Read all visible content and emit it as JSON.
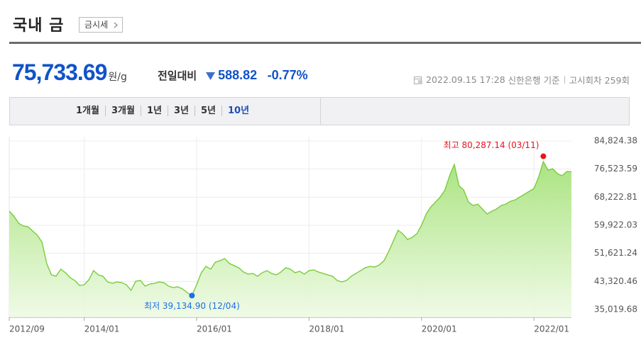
{
  "header": {
    "title": "국내 금",
    "button": "금시세"
  },
  "quote": {
    "price": "75,733.69",
    "unit": "원/g",
    "compare_label": "전일대비",
    "change": "588.82",
    "change_pct": "-0.77%",
    "timestamp": "2022.09.15 17:28",
    "source": "신한은행 기준",
    "round": "고시회차 259회"
  },
  "tabs": [
    "1개월",
    "3개월",
    "1년",
    "3년",
    "5년",
    "10년"
  ],
  "active_tab": 5,
  "chart_data": {
    "type": "area",
    "x": [
      "2012/09",
      "2012/10",
      "2012/11",
      "2012/12",
      "2013/01",
      "2013/02",
      "2013/03",
      "2013/04",
      "2013/05",
      "2013/06",
      "2013/07",
      "2013/08",
      "2013/09",
      "2013/10",
      "2013/11",
      "2013/12",
      "2014/01",
      "2014/02",
      "2014/03",
      "2014/04",
      "2014/05",
      "2014/06",
      "2014/07",
      "2014/08",
      "2014/09",
      "2014/10",
      "2014/11",
      "2014/12",
      "2015/01",
      "2015/02",
      "2015/03",
      "2015/04",
      "2015/05",
      "2015/06",
      "2015/07",
      "2015/08",
      "2015/09",
      "2015/10",
      "2015/11",
      "2015/12",
      "2016/01",
      "2016/02",
      "2016/03",
      "2016/04",
      "2016/05",
      "2016/06",
      "2016/07",
      "2016/08",
      "2016/09",
      "2016/10",
      "2016/11",
      "2016/12",
      "2017/01",
      "2017/02",
      "2017/03",
      "2017/04",
      "2017/05",
      "2017/06",
      "2017/07",
      "2017/08",
      "2017/09",
      "2017/10",
      "2017/11",
      "2017/12",
      "2018/01",
      "2018/02",
      "2018/03",
      "2018/04",
      "2018/05",
      "2018/06",
      "2018/07",
      "2018/08",
      "2018/09",
      "2018/10",
      "2018/11",
      "2018/12",
      "2019/01",
      "2019/02",
      "2019/03",
      "2019/04",
      "2019/05",
      "2019/06",
      "2019/07",
      "2019/08",
      "2019/09",
      "2019/10",
      "2019/11",
      "2019/12",
      "2020/01",
      "2020/02",
      "2020/03",
      "2020/04",
      "2020/05",
      "2020/06",
      "2020/07",
      "2020/08",
      "2020/09",
      "2020/10",
      "2020/11",
      "2020/12",
      "2021/01",
      "2021/02",
      "2021/03",
      "2021/04",
      "2021/05",
      "2021/06",
      "2021/07",
      "2021/08",
      "2021/09",
      "2021/10",
      "2021/11",
      "2021/12",
      "2022/01",
      "2022/02",
      "2022/03",
      "2022/04",
      "2022/05",
      "2022/06",
      "2022/07",
      "2022/08",
      "2022/09"
    ],
    "values": [
      64085,
      62621,
      60530,
      59694,
      59485,
      58230,
      56976,
      54885,
      48612,
      45266,
      44848,
      46939,
      45893,
      44430,
      43593,
      42129,
      42339,
      43802,
      46521,
      45266,
      44848,
      43175,
      42757,
      43175,
      42966,
      42339,
      40666,
      43384,
      43593,
      41920,
      42548,
      42757,
      43175,
      42966,
      41920,
      41502,
      41711,
      41084,
      40038,
      39135,
      42339,
      45893,
      47775,
      46939,
      49030,
      49448,
      50075,
      48612,
      47984,
      47357,
      46102,
      45475,
      45684,
      44848,
      45893,
      46521,
      45684,
      45266,
      46102,
      47357,
      46939,
      45893,
      46311,
      45475,
      46521,
      46730,
      46102,
      45684,
      45266,
      44848,
      43593,
      43175,
      43593,
      44848,
      45684,
      46521,
      47357,
      47775,
      47566,
      48193,
      49448,
      52166,
      55303,
      58439,
      57394,
      55721,
      56348,
      57394,
      59903,
      63249,
      65340,
      66803,
      68267,
      70358,
      74540,
      77886,
      71613,
      70358,
      66803,
      65758,
      66176,
      64712,
      63249,
      64085,
      64712,
      65758,
      66176,
      67012,
      67431,
      68267,
      69103,
      69940,
      70776,
      74122,
      78722,
      76213,
      76631,
      75167,
      74540,
      75795,
      75734
    ],
    "color": "#7acc3e",
    "ylim": [
      32720,
      86080
    ],
    "yticks": [
      {
        "value": 35019.68,
        "label": "35,019.68"
      },
      {
        "value": 43320.46,
        "label": "43,320.46"
      },
      {
        "value": 51621.24,
        "label": "51,621.24"
      },
      {
        "value": 59922.03,
        "label": "59,922.03"
      },
      {
        "value": 68222.81,
        "label": "68,222.81"
      },
      {
        "value": 76523.59,
        "label": "76,523.59"
      },
      {
        "value": 84824.38,
        "label": "84,824.38"
      }
    ],
    "xticks": [
      "2012/09",
      "2014/01",
      "2016/01",
      "2018/01",
      "2020/01",
      "2022/01"
    ],
    "grid": true,
    "annotations": [
      {
        "text": "최고 80,287.14 (03/11)",
        "x": "2022/03",
        "value": 80287.14,
        "color": "#e8141e"
      },
      {
        "text": "최저 39,134.90 (12/04)",
        "x": "2015/12",
        "value": 39134.9,
        "color": "#1e6ee6"
      }
    ]
  }
}
